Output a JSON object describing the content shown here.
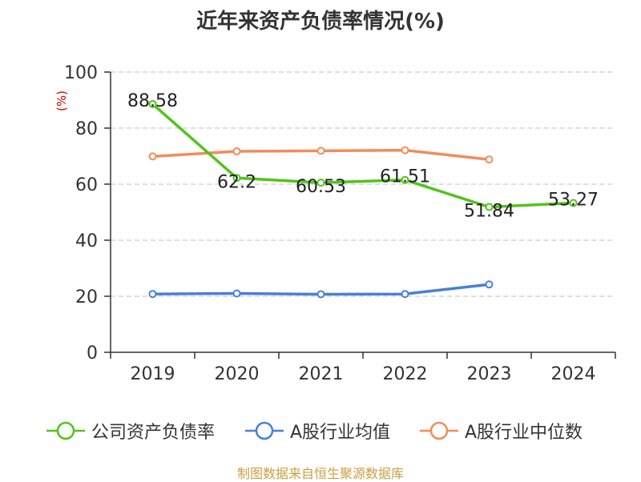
{
  "title": "近年来资产负债率情况(%)",
  "source": "制图数据来自恒生聚源数据库",
  "chart_data": {
    "type": "line",
    "title": "近年来资产负债率情况(%)",
    "ylabel": "(%)",
    "xlabel": "",
    "categories": [
      "2019",
      "2020",
      "2021",
      "2022",
      "2023",
      "2024"
    ],
    "ylim": [
      0,
      100
    ],
    "yticks": [
      0,
      20,
      40,
      60,
      80,
      100
    ],
    "grid": true,
    "legend_position": "bottom",
    "series": [
      {
        "name": "公司资产负债率",
        "color": "#52c41a",
        "values": [
          88.58,
          62.2,
          60.53,
          61.51,
          51.84,
          53.27
        ],
        "labels": [
          "88.58",
          "62.2",
          "60.53",
          "61.51",
          "51.84",
          "53.27"
        ]
      },
      {
        "name": "A股行业均值",
        "color": "#4a7fd9",
        "values": [
          20.8,
          21.0,
          20.7,
          20.8,
          24.2,
          null
        ]
      },
      {
        "name": "A股行业中位数",
        "color": "#f28c5a",
        "values": [
          69.9,
          71.7,
          71.9,
          72.1,
          68.8,
          null
        ]
      }
    ]
  }
}
